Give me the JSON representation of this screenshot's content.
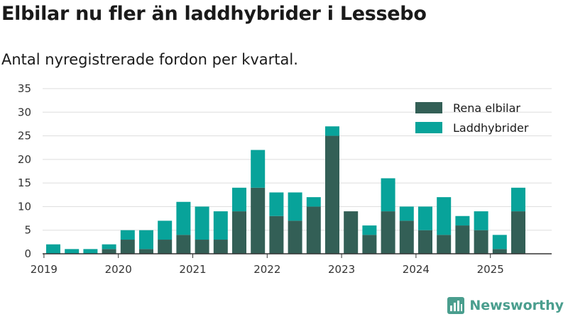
{
  "page": {
    "title": "Elbilar nu fler än laddhybrider i Lessebo",
    "subtitle": "Antal nyregistrerade fordon per kvartal."
  },
  "brand": {
    "name": "Newsworthy"
  },
  "colors": {
    "rena_elbilar": "#335f56",
    "laddhybrider": "#08a39a",
    "grid": "#dddddd",
    "axis": "#333333",
    "brand": "#4a9e8e"
  },
  "chart_data": {
    "type": "bar",
    "stacked": true,
    "title": "Elbilar nu fler än laddhybrider i Lessebo",
    "subtitle": "Antal nyregistrerade fordon per kvartal.",
    "xlabel": "",
    "ylabel": "",
    "ylim": [
      0,
      35
    ],
    "yticks": [
      0,
      5,
      10,
      15,
      20,
      25,
      30,
      35
    ],
    "xtick_labels": [
      "2019",
      "2020",
      "2021",
      "2022",
      "2023",
      "2024",
      "2025"
    ],
    "grid": true,
    "legend_position": "top-right",
    "categories": [
      "2019 Q1",
      "2019 Q2",
      "2019 Q3",
      "2019 Q4",
      "2020 Q1",
      "2020 Q2",
      "2020 Q3",
      "2020 Q4",
      "2021 Q1",
      "2021 Q2",
      "2021 Q3",
      "2021 Q4",
      "2022 Q1",
      "2022 Q2",
      "2022 Q3",
      "2022 Q4",
      "2023 Q1",
      "2023 Q2",
      "2023 Q3",
      "2023 Q4",
      "2024 Q1",
      "2024 Q2",
      "2024 Q3",
      "2024 Q4",
      "2025 Q1",
      "2025 Q2"
    ],
    "series": [
      {
        "name": "Rena elbilar",
        "values": [
          0,
          0,
          0,
          1,
          3,
          1,
          3,
          4,
          3,
          3,
          9,
          14,
          8,
          7,
          10,
          25,
          9,
          4,
          9,
          7,
          5,
          4,
          6,
          5,
          1,
          9
        ]
      },
      {
        "name": "Laddhybrider",
        "values": [
          2,
          1,
          1,
          1,
          2,
          4,
          4,
          7,
          7,
          6,
          5,
          8,
          5,
          6,
          2,
          2,
          0,
          2,
          7,
          3,
          5,
          8,
          2,
          4,
          3,
          5
        ]
      }
    ]
  }
}
